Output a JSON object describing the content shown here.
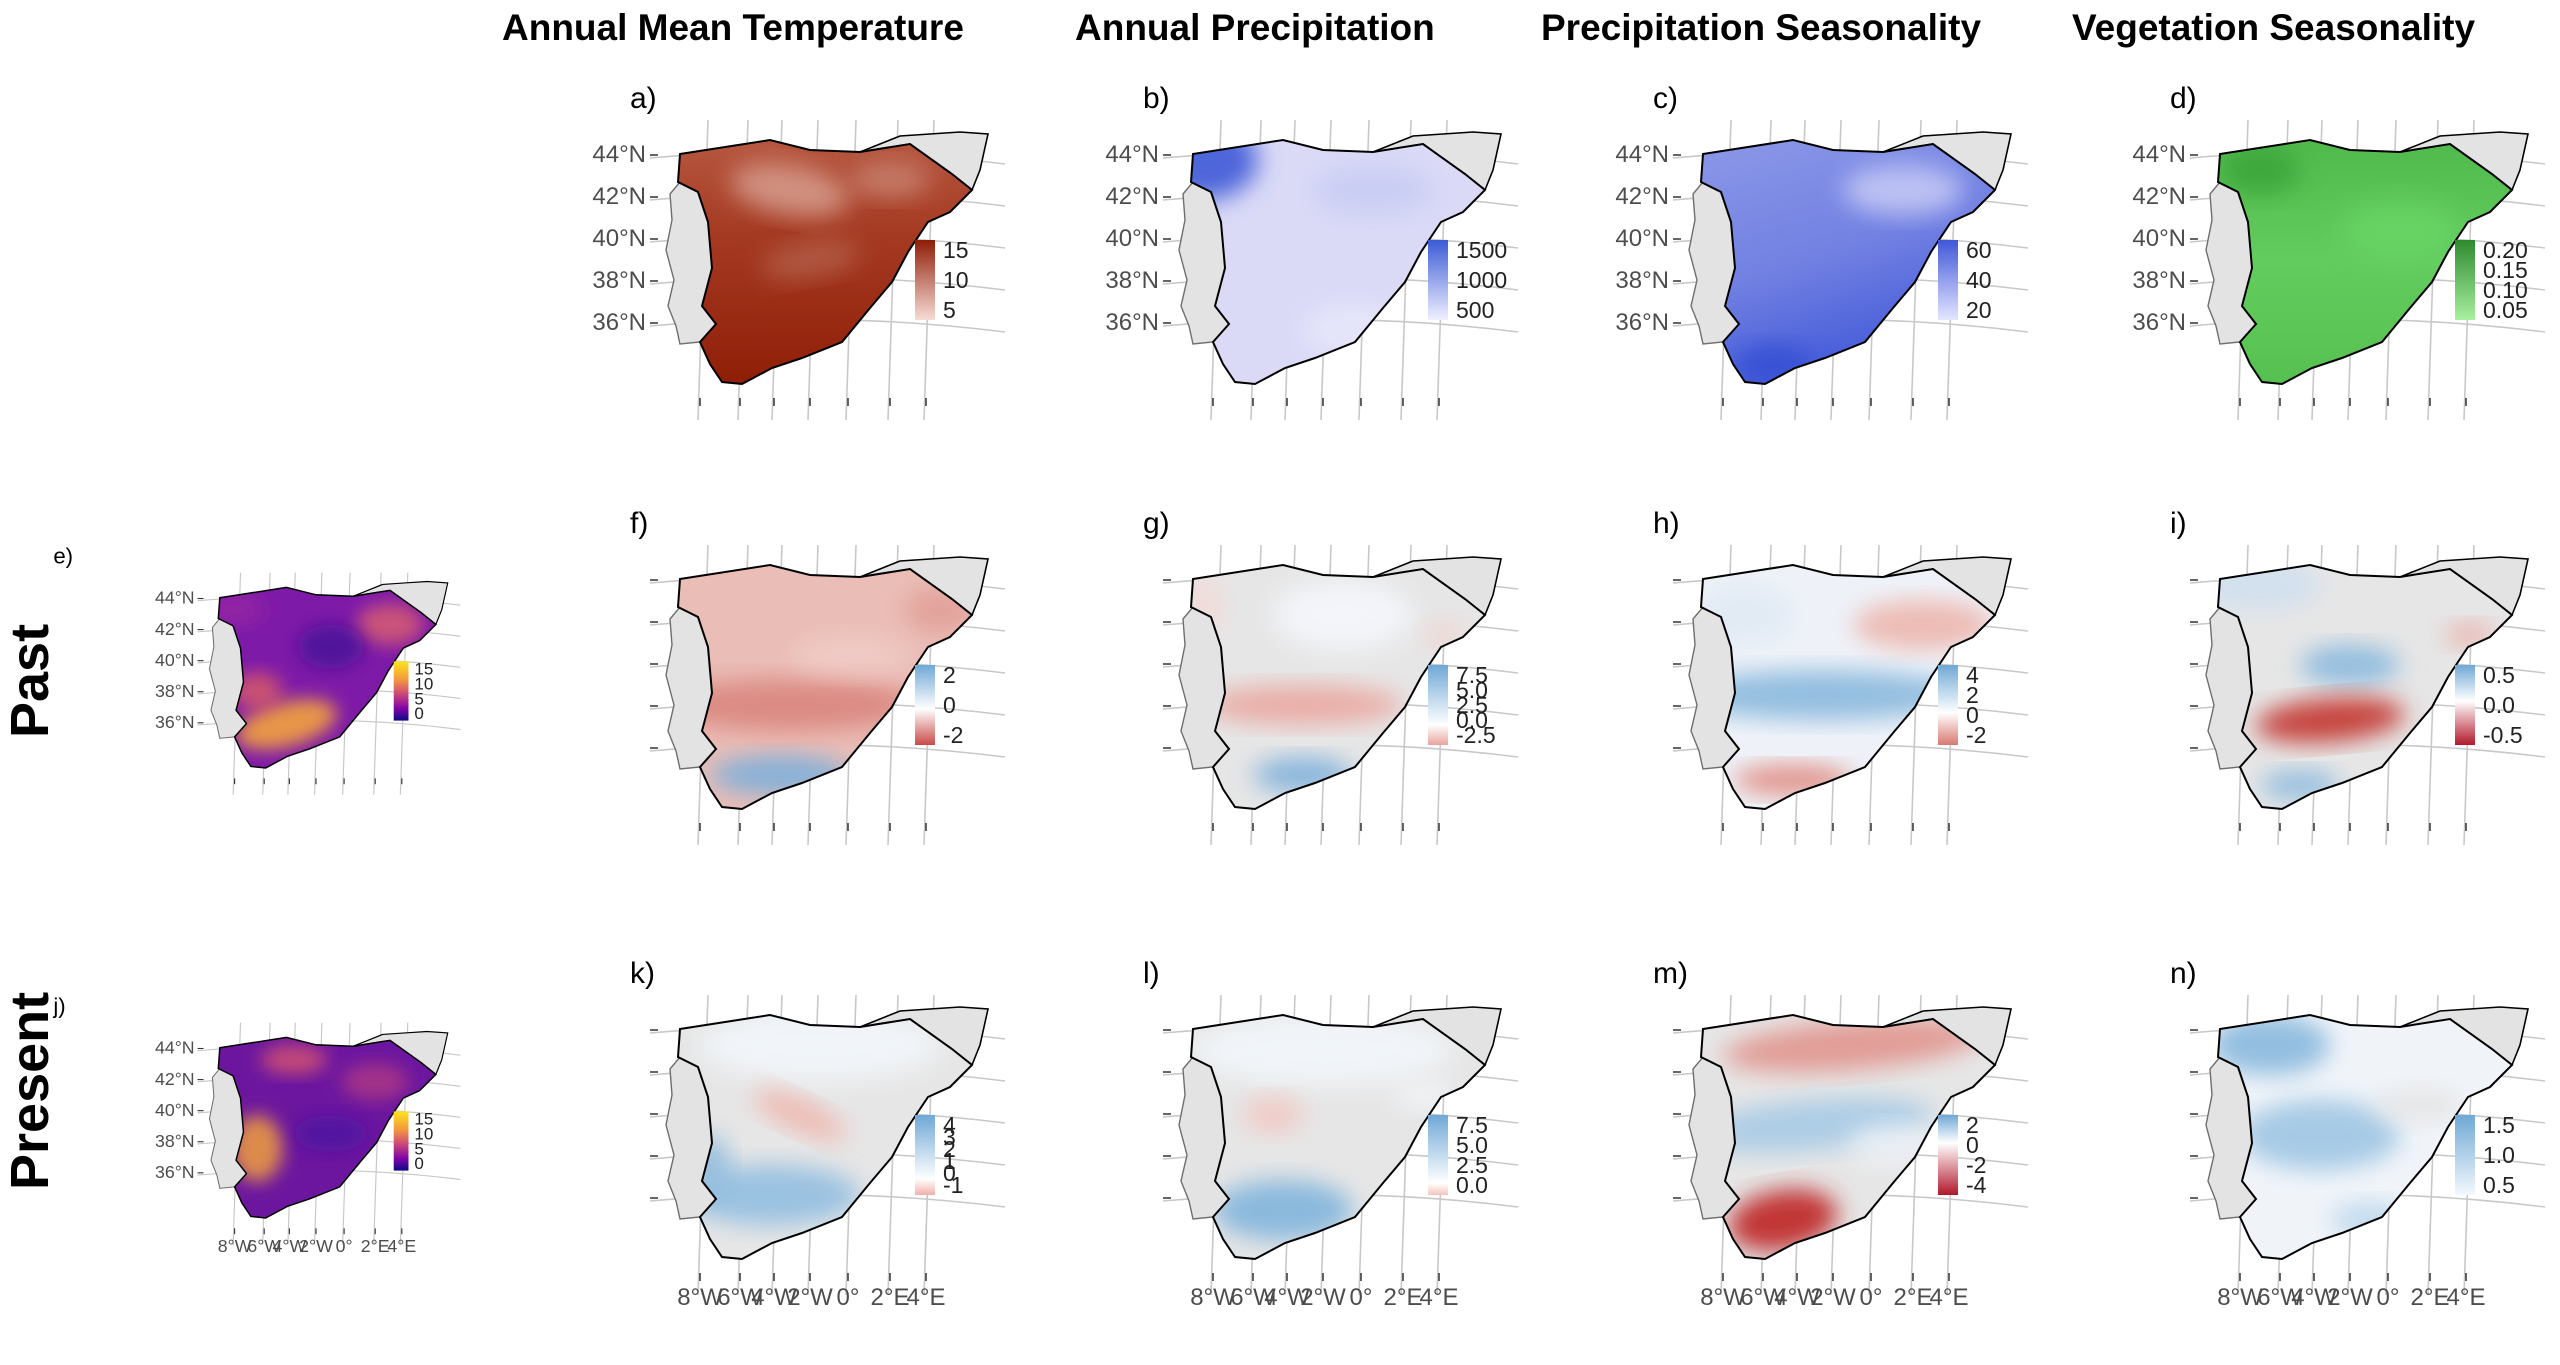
{
  "column_titles": [
    "Annual Mean Temperature",
    "Annual Precipitation",
    "Precipitation Seasonality",
    "Vegetation Seasonality"
  ],
  "row_titles": [
    "Past",
    "Present"
  ],
  "latitude_labels": [
    "44°N",
    "42°N",
    "40°N",
    "38°N",
    "36°N"
  ],
  "longitude_labels": [
    "8°W",
    "6°W",
    "4°W",
    "2°W",
    "0°",
    "2°E",
    "4°E"
  ],
  "colors": {
    "land_outside": "#e3e3e3",
    "graticule": "#c8c8c8",
    "coast": "#000000",
    "border": "#6e6e6e"
  },
  "chart_data": [
    {
      "id": "a",
      "label": "a)",
      "type": "heatmap",
      "row": "top",
      "column": "Annual Mean Temperature",
      "legend": {
        "labels": [
          "15",
          "10",
          "5"
        ],
        "colors": [
          "#8f1d06",
          "#f7dcd6"
        ]
      },
      "fill": "temperature",
      "description_values": [
        5,
        10,
        15
      ]
    },
    {
      "id": "b",
      "label": "b)",
      "type": "heatmap",
      "row": "top",
      "column": "Annual Precipitation",
      "legend": {
        "labels": [
          "1500",
          "1000",
          "500"
        ],
        "colors": [
          "#3b5bd6",
          "#f0f0ff"
        ]
      },
      "fill": "precipitation",
      "description_values": [
        500,
        1000,
        1500
      ]
    },
    {
      "id": "c",
      "label": "c)",
      "type": "heatmap",
      "row": "top",
      "column": "Precipitation Seasonality",
      "legend": {
        "labels": [
          "60",
          "40",
          "20"
        ],
        "colors": [
          "#4057d8",
          "#e4e6ff"
        ]
      },
      "fill": "precseason",
      "description_values": [
        20,
        40,
        60
      ]
    },
    {
      "id": "d",
      "label": "d)",
      "type": "heatmap",
      "row": "top",
      "column": "Vegetation Seasonality",
      "legend": {
        "labels": [
          "0.20",
          "0.15",
          "0.10",
          "0.05"
        ],
        "colors": [
          "#2e8a2e",
          "#a8f0a0"
        ]
      },
      "fill": "veg",
      "description_values": [
        0.05,
        0.1,
        0.15,
        0.2
      ]
    },
    {
      "id": "e",
      "label": "e)",
      "type": "heatmap",
      "row": "Past",
      "column": "",
      "legend": {
        "labels": [
          "15",
          "10",
          "5",
          "0"
        ],
        "colors": [
          "#fbe51f",
          "#e16462",
          "#9c179e",
          "#0d0887"
        ]
      },
      "fill": "plasma",
      "description_values": [
        0,
        5,
        10,
        15
      ]
    },
    {
      "id": "f",
      "label": "f)",
      "type": "heatmap",
      "row": "Past",
      "column": "Annual Mean Temperature",
      "legend": {
        "labels": [
          "2",
          "0",
          "-2"
        ],
        "colors": [
          "#6fa8d6",
          "#ffffff",
          "#c94a46"
        ]
      },
      "fill": "f",
      "description_values": [
        -2,
        0,
        2
      ]
    },
    {
      "id": "g",
      "label": "g)",
      "type": "heatmap",
      "row": "Past",
      "column": "Annual Precipitation",
      "legend": {
        "labels": [
          "7.5",
          "5.0",
          "2.5",
          "0.0",
          "-2.5"
        ],
        "colors": [
          "#6fa8d6",
          "#ffffff",
          "#e8a49c"
        ]
      },
      "fill": "g",
      "description_values": [
        -2.5,
        0,
        2.5,
        5,
        7.5
      ]
    },
    {
      "id": "h",
      "label": "h)",
      "type": "heatmap",
      "row": "Past",
      "column": "Precipitation Seasonality",
      "legend": {
        "labels": [
          "4",
          "2",
          "0",
          "-2"
        ],
        "colors": [
          "#6fa8d6",
          "#ffffff",
          "#d8786f"
        ]
      },
      "fill": "h",
      "description_values": [
        -2,
        0,
        2,
        4
      ]
    },
    {
      "id": "i",
      "label": "i)",
      "type": "heatmap",
      "row": "Past",
      "column": "Vegetation Seasonality",
      "legend": {
        "labels": [
          "0.5",
          "0.0",
          "-0.5"
        ],
        "colors": [
          "#6fa8d6",
          "#ffffff",
          "#b2182b"
        ]
      },
      "fill": "i",
      "description_values": [
        -0.5,
        0,
        0.5
      ]
    },
    {
      "id": "j",
      "label": "j)",
      "type": "heatmap",
      "row": "Present",
      "column": "",
      "legend": {
        "labels": [
          "15",
          "10",
          "5",
          "0"
        ],
        "colors": [
          "#fbe51f",
          "#e16462",
          "#9c179e",
          "#0d0887"
        ]
      },
      "fill": "plasma2",
      "description_values": [
        0,
        5,
        10,
        15
      ]
    },
    {
      "id": "k",
      "label": "k)",
      "type": "heatmap",
      "row": "Present",
      "column": "Annual Mean Temperature",
      "legend": {
        "labels": [
          "4",
          "3",
          "2",
          "1",
          "0",
          "-1"
        ],
        "colors": [
          "#6fa8d6",
          "#ffffff",
          "#f0b0a8"
        ]
      },
      "fill": "k",
      "description_values": [
        -1,
        0,
        1,
        2,
        3,
        4
      ]
    },
    {
      "id": "l",
      "label": "l)",
      "type": "heatmap",
      "row": "Present",
      "column": "Annual Precipitation",
      "legend": {
        "labels": [
          "7.5",
          "5.0",
          "2.5",
          "0.0"
        ],
        "colors": [
          "#6fa8d6",
          "#ffffff",
          "#f4c4bd"
        ]
      },
      "fill": "l",
      "description_values": [
        0,
        2.5,
        5,
        7.5
      ]
    },
    {
      "id": "m",
      "label": "m)",
      "type": "heatmap",
      "row": "Present",
      "column": "Precipitation Seasonality",
      "legend": {
        "labels": [
          "2",
          "0",
          "-2",
          "-4"
        ],
        "colors": [
          "#6fa8d6",
          "#ffffff",
          "#b2182b"
        ]
      },
      "fill": "m",
      "description_values": [
        -4,
        -2,
        0,
        2
      ]
    },
    {
      "id": "n",
      "label": "n)",
      "type": "heatmap",
      "row": "Present",
      "column": "Vegetation Seasonality",
      "legend": {
        "labels": [
          "1.5",
          "1.0",
          "0.5"
        ],
        "colors": [
          "#6fa8d6",
          "#f4f8fc"
        ]
      },
      "fill": "n",
      "description_values": [
        0.5,
        1,
        1.5
      ]
    }
  ]
}
